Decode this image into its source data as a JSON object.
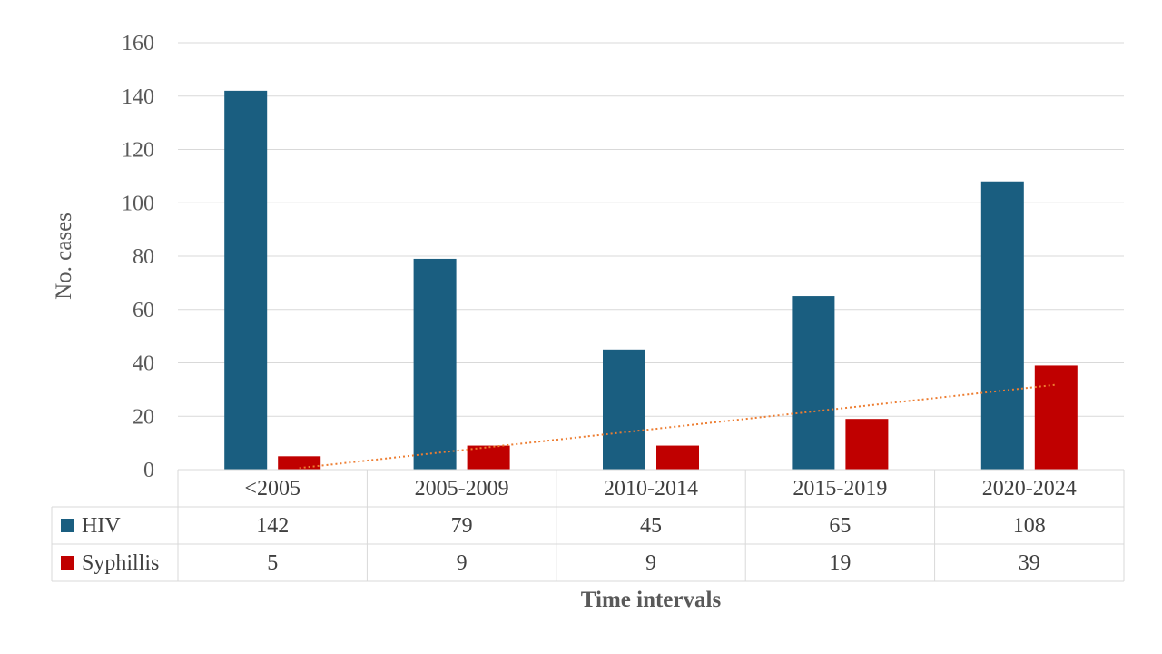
{
  "chart_data": {
    "type": "bar",
    "title": "",
    "xlabel": "Time intervals",
    "ylabel": "No. cases",
    "ylim": [
      0,
      160
    ],
    "yticks": [
      0,
      20,
      40,
      60,
      80,
      100,
      120,
      140,
      160
    ],
    "grid": true,
    "categories": [
      "<2005",
      "2005-2009",
      "2010-2014",
      "2015-2019",
      "2020-2024"
    ],
    "series": [
      {
        "name": "HIV",
        "color": "#1a5e80",
        "values": [
          142,
          79,
          45,
          65,
          108
        ]
      },
      {
        "name": "Syphillis",
        "color": "#c00000",
        "values": [
          5,
          9,
          9,
          19,
          39
        ]
      }
    ],
    "trendline": {
      "series": "Syphillis",
      "type": "linear",
      "color": "#ed7d31",
      "style": "dotted"
    },
    "data_table": true
  }
}
